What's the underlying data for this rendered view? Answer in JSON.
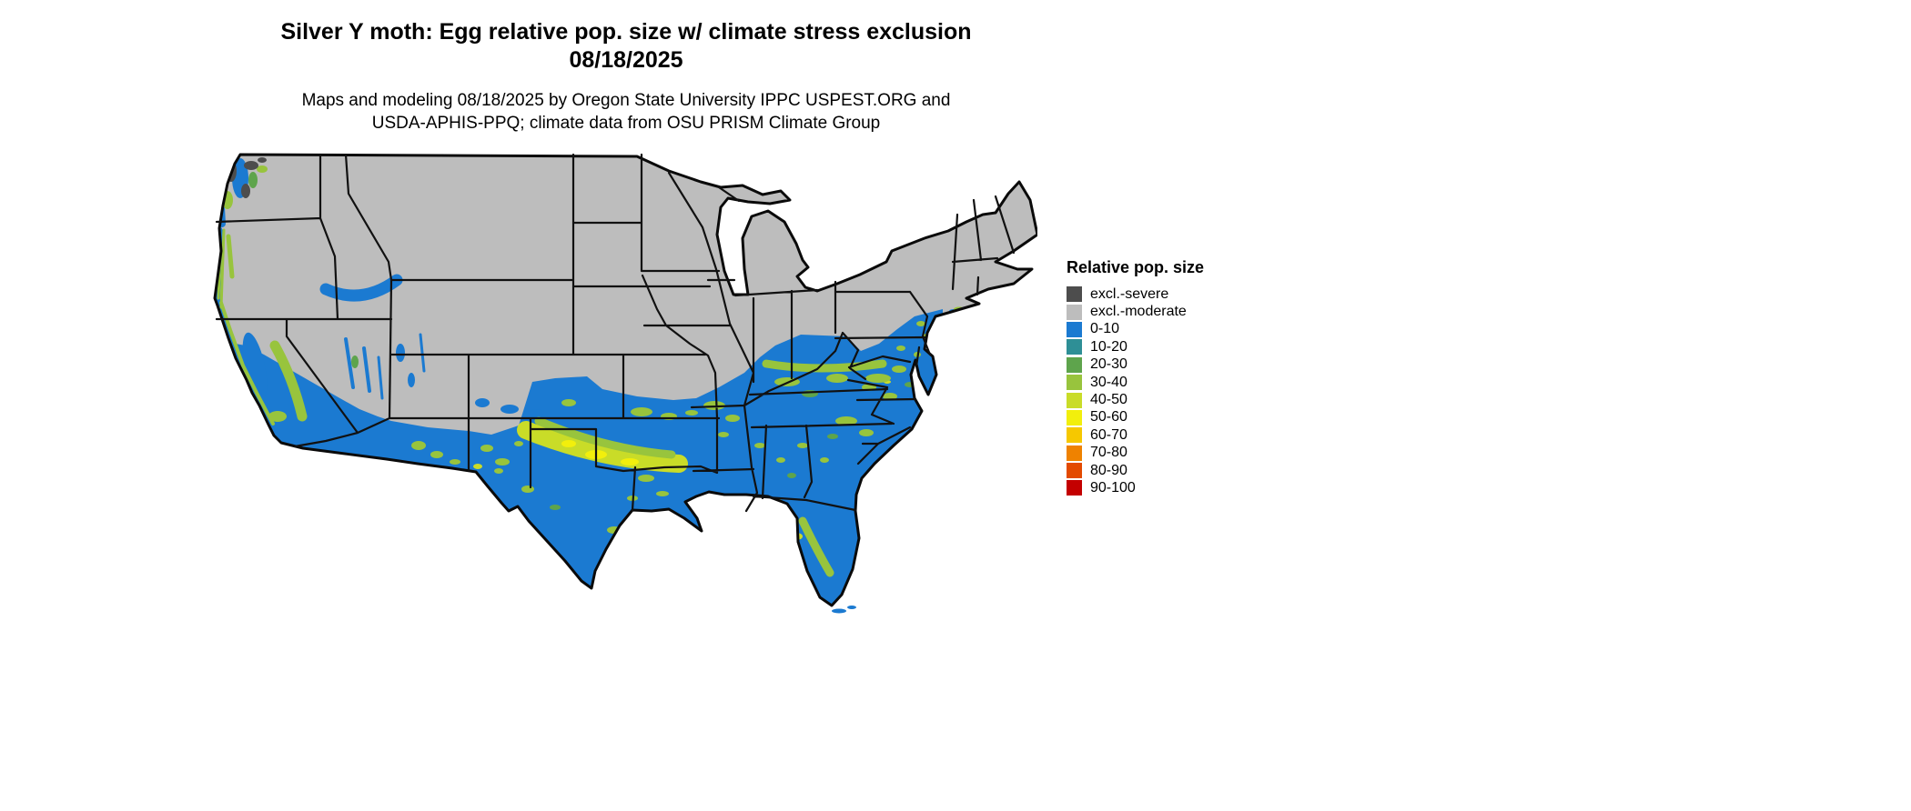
{
  "header": {
    "title_line1": "Silver Y moth: Egg relative pop. size w/ climate stress exclusion",
    "title_line2": "08/18/2025",
    "subtitle_line1": "Maps and modeling 08/18/2025 by Oregon State University IPPC USPEST.ORG and",
    "subtitle_line2": "USDA-APHIS-PPQ; climate data from OSU PRISM Climate Group"
  },
  "legend": {
    "title": "Relative pop. size",
    "items": [
      {
        "label": "excl.-severe",
        "color": "#4d4d4d"
      },
      {
        "label": "excl.-moderate",
        "color": "#bdbdbd"
      },
      {
        "label": "0-10",
        "color": "#1b7ad1"
      },
      {
        "label": "10-20",
        "color": "#2e8f96"
      },
      {
        "label": "20-30",
        "color": "#5ea44c"
      },
      {
        "label": "30-40",
        "color": "#98c43d"
      },
      {
        "label": "40-50",
        "color": "#c9dc28"
      },
      {
        "label": "50-60",
        "color": "#f2ef0c"
      },
      {
        "label": "60-70",
        "color": "#f6c800"
      },
      {
        "label": "70-80",
        "color": "#ef8200"
      },
      {
        "label": "80-90",
        "color": "#e34a00"
      },
      {
        "label": "90-100",
        "color": "#c40000"
      }
    ]
  }
}
